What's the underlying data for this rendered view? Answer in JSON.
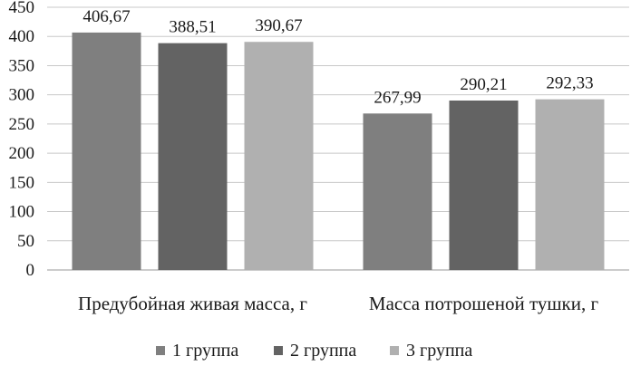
{
  "chart_data": {
    "type": "bar",
    "categories": [
      "Предубойная живая масса, г",
      "Масса потрошеной тушки, г"
    ],
    "series": [
      {
        "name": "1 группа",
        "values": [
          406.67,
          267.99
        ],
        "labels": [
          "406,67",
          "267,99"
        ],
        "color": "#7f7f7f"
      },
      {
        "name": "2 группа",
        "values": [
          388.51,
          290.21
        ],
        "labels": [
          "388,51",
          "290,21"
        ],
        "color": "#636363"
      },
      {
        "name": "3 группа",
        "values": [
          390.67,
          292.33
        ],
        "labels": [
          "390,67",
          "292,33"
        ],
        "color": "#b0b0b0"
      }
    ],
    "ylim": [
      0,
      450
    ],
    "yticks": [
      0,
      50,
      100,
      150,
      200,
      250,
      300,
      350,
      400,
      450
    ],
    "grid": true,
    "legend_position": "bottom",
    "title": "",
    "xlabel": "",
    "ylabel": ""
  }
}
